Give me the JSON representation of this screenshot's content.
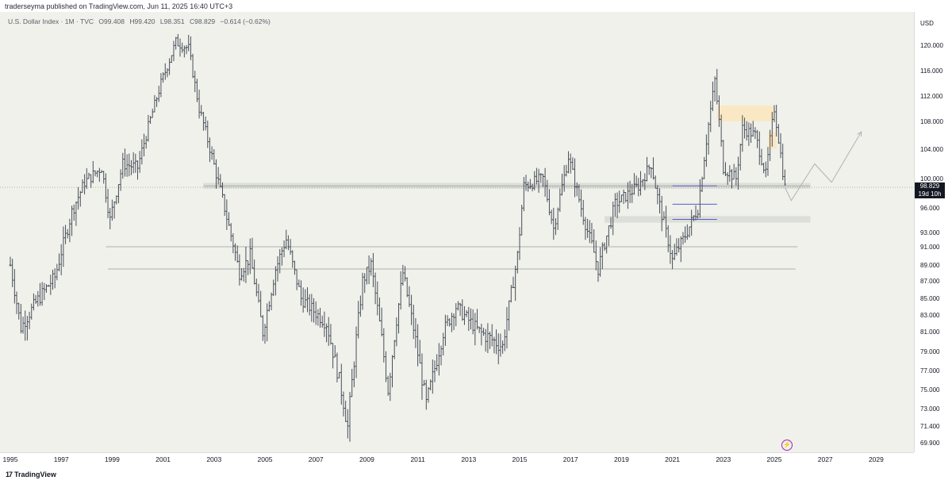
{
  "header": {
    "published_text": "traderseyma published on TradingView.com, Jun 11, 2025 16:40 UTC+3"
  },
  "legend": {
    "symbol_line": "U.S. Dollar Index · 1M · TVC",
    "open": "O99.408",
    "high": "H99.420",
    "low": "L98.351",
    "close": "C98.829",
    "change": "−0.614 (−0.62%)"
  },
  "price_axis": {
    "currency": "USD",
    "current_price": "98.829",
    "countdown": "19d 10h",
    "tick_labels": [
      "120.000",
      "116.000",
      "112.000",
      "108.000",
      "104.000",
      "100.000",
      "96.000",
      "93.000",
      "91.000",
      "89.000",
      "87.000",
      "85.000",
      "83.000",
      "81.000",
      "79.000",
      "77.000",
      "75.000",
      "73.000",
      "71.400",
      "69.900"
    ]
  },
  "footer": {
    "brand": "TradingView",
    "brand_mark": "17"
  },
  "colors": {
    "background": "#eff1ea",
    "candle": "#4a4e5a",
    "hline": "#9a9d98",
    "blue_line": "#5b5bc7",
    "zone": "#d7d9d4",
    "highlight": "#fbe7c0",
    "projection": "#b0b3b8",
    "price_tag": "#131722"
  },
  "chart_data": {
    "type": "line",
    "title": "U.S. Dollar Index · 1M · TVC",
    "ylabel": "USD",
    "ylim": [
      69.9,
      120.0
    ],
    "x_ticks": [
      "1995",
      "1997",
      "1999",
      "2001",
      "2003",
      "2005",
      "2007",
      "2009",
      "2011",
      "2013",
      "2015",
      "2017",
      "2019",
      "2021",
      "2023",
      "2025",
      "2027",
      "2029"
    ],
    "series": [
      {
        "values": [
          {
            "x": "1995-01",
            "y": 89.0
          },
          {
            "x": "1995-06",
            "y": 81.5
          },
          {
            "x": "1996-01",
            "y": 84.5
          },
          {
            "x": "1996-10",
            "y": 87.5
          },
          {
            "x": "1997-06",
            "y": 95.5
          },
          {
            "x": "1997-12",
            "y": 99.5
          },
          {
            "x": "1998-08",
            "y": 101.5
          },
          {
            "x": "1998-12",
            "y": 94.5
          },
          {
            "x": "1999-06",
            "y": 102.0
          },
          {
            "x": "2000-01",
            "y": 101.5
          },
          {
            "x": "2000-12",
            "y": 114.0
          },
          {
            "x": "2001-07",
            "y": 120.5
          },
          {
            "x": "2002-01",
            "y": 119.5
          },
          {
            "x": "2002-06",
            "y": 110.0
          },
          {
            "x": "2002-12",
            "y": 103.0
          },
          {
            "x": "2003-06",
            "y": 96.0
          },
          {
            "x": "2004-01",
            "y": 88.0
          },
          {
            "x": "2004-06",
            "y": 90.0
          },
          {
            "x": "2004-12",
            "y": 81.0
          },
          {
            "x": "2005-06",
            "y": 88.5
          },
          {
            "x": "2005-11",
            "y": 92.0
          },
          {
            "x": "2006-06",
            "y": 85.0
          },
          {
            "x": "2007-06",
            "y": 82.0
          },
          {
            "x": "2007-12",
            "y": 76.0
          },
          {
            "x": "2008-04",
            "y": 71.3
          },
          {
            "x": "2008-11",
            "y": 87.0
          },
          {
            "x": "2009-03",
            "y": 89.0
          },
          {
            "x": "2009-11",
            "y": 75.0
          },
          {
            "x": "2010-06",
            "y": 88.0
          },
          {
            "x": "2011-05",
            "y": 73.5
          },
          {
            "x": "2012-01",
            "y": 81.0
          },
          {
            "x": "2012-07",
            "y": 84.0
          },
          {
            "x": "2013-06",
            "y": 81.0
          },
          {
            "x": "2014-05",
            "y": 79.5
          },
          {
            "x": "2014-12",
            "y": 90.0
          },
          {
            "x": "2015-03",
            "y": 99.0
          },
          {
            "x": "2015-12",
            "y": 100.0
          },
          {
            "x": "2016-05",
            "y": 93.5
          },
          {
            "x": "2016-12",
            "y": 103.0
          },
          {
            "x": "2017-06",
            "y": 96.0
          },
          {
            "x": "2018-02",
            "y": 88.5
          },
          {
            "x": "2018-10",
            "y": 96.5
          },
          {
            "x": "2019-09",
            "y": 99.0
          },
          {
            "x": "2020-03",
            "y": 102.0
          },
          {
            "x": "2020-06",
            "y": 97.5
          },
          {
            "x": "2021-01",
            "y": 89.5
          },
          {
            "x": "2021-06",
            "y": 92.0
          },
          {
            "x": "2022-01",
            "y": 96.0
          },
          {
            "x": "2022-09",
            "y": 114.5
          },
          {
            "x": "2023-01",
            "y": 101.5
          },
          {
            "x": "2023-07",
            "y": 100.0
          },
          {
            "x": "2023-10",
            "y": 107.0
          },
          {
            "x": "2024-04",
            "y": 106.0
          },
          {
            "x": "2024-09",
            "y": 100.5
          },
          {
            "x": "2025-01",
            "y": 110.0
          },
          {
            "x": "2025-06",
            "y": 98.8
          }
        ]
      }
    ],
    "annotations": {
      "horizontal_lines": [
        {
          "y": 99.0,
          "x_start": "2002-08",
          "x_end": "2026-06"
        },
        {
          "y": 91.0,
          "x_start": "1998-10",
          "x_end": "2025-12"
        },
        {
          "y": 88.5,
          "x_start": "1998-11",
          "x_end": "2025-11"
        }
      ],
      "blue_lines": [
        {
          "y": 99.0,
          "x_start": "2021-01",
          "x_end": "2022-10"
        },
        {
          "y": 96.5,
          "x_start": "2021-01",
          "x_end": "2022-10"
        },
        {
          "y": 94.6,
          "x_start": "2021-01",
          "x_end": "2022-10"
        }
      ],
      "zones": [
        {
          "y_low": 98.6,
          "y_high": 99.4,
          "x_start": "2002-08",
          "x_end": "2026-06",
          "kind": "grey"
        },
        {
          "y_low": 94.2,
          "y_high": 95.0,
          "x_start": "2018-05",
          "x_end": "2026-06",
          "kind": "grey"
        },
        {
          "y_low": 108.0,
          "y_high": 110.5,
          "x_start": "2022-10",
          "x_end": "2025-01",
          "kind": "highlight"
        },
        {
          "y_low": 104.0,
          "y_high": 106.5,
          "x_start": "2024-10",
          "x_end": "2025-02",
          "kind": "highlight"
        }
      ],
      "projection": [
        {
          "x": "2025-06",
          "y": 98.8
        },
        {
          "x": "2025-09",
          "y": 97.0
        },
        {
          "x": "2026-08",
          "y": 102.0
        },
        {
          "x": "2027-04",
          "y": 99.5
        },
        {
          "x": "2028-06",
          "y": 106.5
        }
      ]
    }
  }
}
